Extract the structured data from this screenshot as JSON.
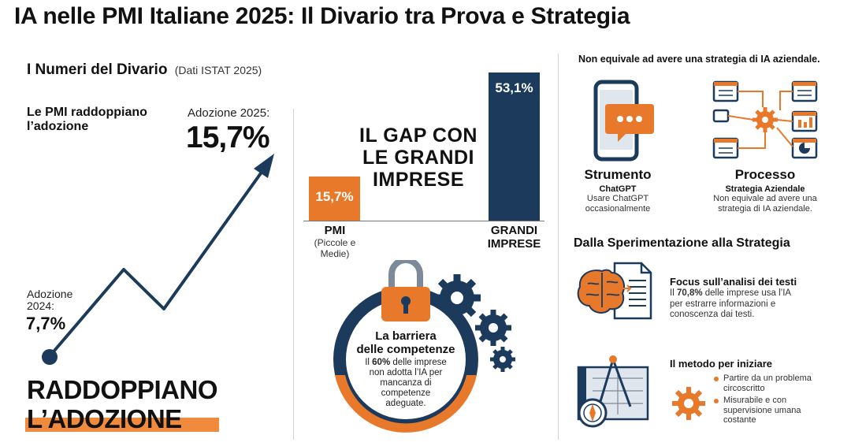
{
  "header": {
    "title": "IA nelle PMI Italiane 2025: Il Divario tra Prova e Strategia"
  },
  "numbers": {
    "heading": "I Numeri del Divario",
    "source": "(Dati ISTAT 2025)",
    "subtitle_l1": "Le PMI raddoppiano",
    "subtitle_l2": "l’adozione",
    "adoption_2025_label": "Adozione 2025:",
    "adoption_2025_value": "15,7%",
    "adoption_2024_label_l1": "Adozione",
    "adoption_2024_label_l2": "2024:",
    "adoption_2024_value": "7,7%",
    "headline_l1": "RADDOPPIANO",
    "headline_l2": "L’ADOZIONE"
  },
  "gap": {
    "title_l1": "IL GAP CON",
    "title_l2": "LE GRANDI",
    "title_l3": "IMPRESE",
    "pmi_value_label": "15,7%",
    "pmi_value": 15.7,
    "pmi_label": "PMI",
    "pmi_sub_l1": "(Piccole e",
    "pmi_sub_l2": "Medie)",
    "large_value_label": "53,1%",
    "large_value": 53.1,
    "large_label_l1": "GRANDI",
    "large_label_l2": "IMPRESE"
  },
  "barrier": {
    "title_l1": "La barriera",
    "title_l2": "delle competenze",
    "text_pre": "Il ",
    "text_bold": "60%",
    "text_post_l1": " delle imprese",
    "text_l2": "non adotta l’IA per",
    "text_l3": "mancanza di",
    "text_l4": "competenze",
    "text_l5": "adeguate."
  },
  "right": {
    "top_note": "Non equivale ad avere una strategia di IA aziendale.",
    "tool_title": "Strumento",
    "tool_sub": "ChatGPT",
    "tool_desc_l1": "Usare ChatGPT",
    "tool_desc_l2": "occasionalmente",
    "process_title": "Processo",
    "process_sub": "Strategia Aziendale",
    "process_desc_l1": "Non equivale ad avere una",
    "process_desc_l2": "strategia di IA aziendale.",
    "section2_title": "Dalla Sperimentazione alla Strategia",
    "focus_title": "Focus sull’analisi dei testi",
    "focus_pre": "Il ",
    "focus_bold": "70,8%",
    "focus_post_l1": " delle imprese usa l’IA",
    "focus_l2": "per estrarre informazioni e",
    "focus_l3": "conoscenza dai testi.",
    "method_title": "Il metodo per iniziare",
    "method_items": [
      [
        "Partire da un problema",
        "circoscritto"
      ],
      [
        "Misurabile e con",
        "supervisione umana",
        "costante"
      ]
    ]
  },
  "colors": {
    "navy": "#1b3a5c",
    "orange": "#e8782a"
  }
}
